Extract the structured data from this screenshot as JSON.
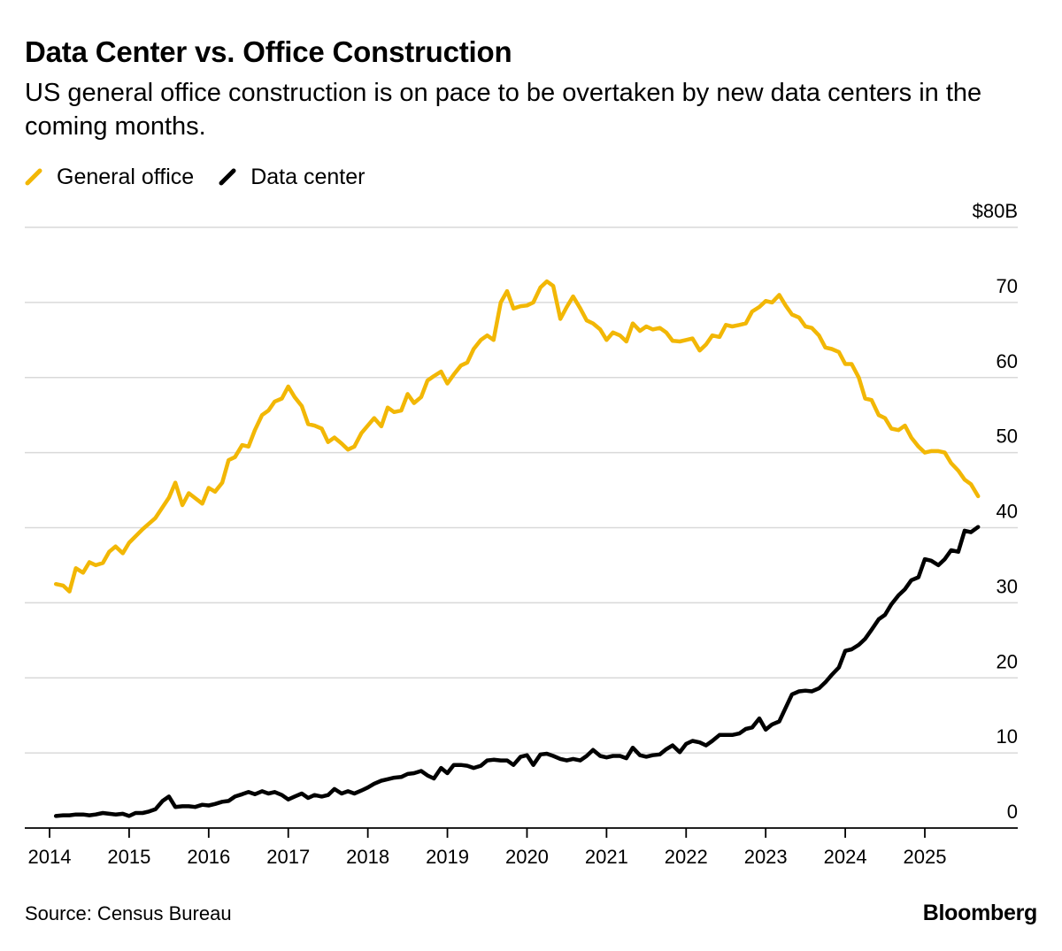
{
  "title": "Data Center vs. Office Construction",
  "subtitle": "US general office construction is on pace to be overtaken by new data centers in the coming months.",
  "source": "Source: Census Bureau",
  "brand": "Bloomberg",
  "colors": {
    "general_office": "#F2B705",
    "data_center": "#000000",
    "grid": "#d9d9d9",
    "axis": "#000000"
  },
  "legend": [
    {
      "label": "General office",
      "color": "#F2B705"
    },
    {
      "label": "Data center",
      "color": "#000000"
    }
  ],
  "chart_data": {
    "type": "line",
    "title": "Data Center vs. Office Construction",
    "subtitle": "US general office construction is on pace to be overtaken by new data centers in the coming months.",
    "xlabel": "",
    "ylabel": "",
    "y_axis_side": "right",
    "ylim": [
      0,
      80
    ],
    "yticks": [
      0,
      10,
      20,
      30,
      40,
      50,
      60,
      70,
      80
    ],
    "ytick_labels": [
      "0",
      "10",
      "20",
      "30",
      "40",
      "50",
      "60",
      "70",
      "$80B"
    ],
    "xlim": [
      2014,
      2026.2
    ],
    "xticks": [
      2014,
      2015,
      2016,
      2017,
      2018,
      2019,
      2020,
      2021,
      2022,
      2023,
      2024,
      2025
    ],
    "xtick_labels": [
      "2014",
      "2015",
      "2016",
      "2017",
      "2018",
      "2019",
      "2020",
      "2021",
      "2022",
      "2023",
      "2024",
      "2025"
    ],
    "grid": true,
    "legend_position": "top-left",
    "series": [
      {
        "name": "General office",
        "color": "#F2B705",
        "points": [
          [
            2014.08,
            32.5
          ],
          [
            2014.17,
            32.3
          ],
          [
            2014.25,
            31.5
          ],
          [
            2014.33,
            34.6
          ],
          [
            2014.42,
            34.0
          ],
          [
            2014.5,
            35.4
          ],
          [
            2014.58,
            35.0
          ],
          [
            2014.67,
            35.3
          ],
          [
            2014.75,
            36.8
          ],
          [
            2014.83,
            37.5
          ],
          [
            2014.92,
            36.6
          ],
          [
            2015.0,
            38.0
          ],
          [
            2015.17,
            39.8
          ],
          [
            2015.33,
            41.3
          ],
          [
            2015.5,
            44.0
          ],
          [
            2015.58,
            46.0
          ],
          [
            2015.67,
            43.0
          ],
          [
            2015.75,
            44.6
          ],
          [
            2015.92,
            43.2
          ],
          [
            2016.0,
            45.3
          ],
          [
            2016.08,
            44.8
          ],
          [
            2016.17,
            46.0
          ],
          [
            2016.25,
            49.0
          ],
          [
            2016.33,
            49.4
          ],
          [
            2016.42,
            51.0
          ],
          [
            2016.5,
            50.8
          ],
          [
            2016.58,
            53.0
          ],
          [
            2016.67,
            55.0
          ],
          [
            2016.75,
            55.6
          ],
          [
            2016.83,
            56.8
          ],
          [
            2016.92,
            57.2
          ],
          [
            2017.0,
            58.8
          ],
          [
            2017.08,
            57.4
          ],
          [
            2017.17,
            56.2
          ],
          [
            2017.25,
            53.8
          ],
          [
            2017.33,
            53.6
          ],
          [
            2017.42,
            53.2
          ],
          [
            2017.5,
            51.4
          ],
          [
            2017.58,
            52.0
          ],
          [
            2017.67,
            51.2
          ],
          [
            2017.75,
            50.4
          ],
          [
            2017.83,
            50.8
          ],
          [
            2017.92,
            52.6
          ],
          [
            2018.0,
            53.6
          ],
          [
            2018.08,
            54.6
          ],
          [
            2018.17,
            53.5
          ],
          [
            2018.25,
            56.0
          ],
          [
            2018.33,
            55.4
          ],
          [
            2018.42,
            55.6
          ],
          [
            2018.5,
            57.8
          ],
          [
            2018.58,
            56.6
          ],
          [
            2018.67,
            57.4
          ],
          [
            2018.75,
            59.6
          ],
          [
            2018.83,
            60.2
          ],
          [
            2018.92,
            60.8
          ],
          [
            2019.0,
            59.2
          ],
          [
            2019.08,
            60.4
          ],
          [
            2019.17,
            61.6
          ],
          [
            2019.25,
            62.0
          ],
          [
            2019.33,
            63.8
          ],
          [
            2019.42,
            65.0
          ],
          [
            2019.5,
            65.6
          ],
          [
            2019.58,
            65.0
          ],
          [
            2019.67,
            70.0
          ],
          [
            2019.75,
            71.5
          ],
          [
            2019.83,
            69.2
          ],
          [
            2019.92,
            69.5
          ],
          [
            2020.0,
            69.6
          ],
          [
            2020.08,
            70.0
          ],
          [
            2020.17,
            72.0
          ],
          [
            2020.25,
            72.8
          ],
          [
            2020.33,
            72.2
          ],
          [
            2020.42,
            67.8
          ],
          [
            2020.5,
            69.4
          ],
          [
            2020.58,
            70.8
          ],
          [
            2020.67,
            69.2
          ],
          [
            2020.75,
            67.6
          ],
          [
            2020.83,
            67.2
          ],
          [
            2020.92,
            66.4
          ],
          [
            2021.0,
            65.0
          ],
          [
            2021.08,
            66.0
          ],
          [
            2021.17,
            65.6
          ],
          [
            2021.25,
            64.8
          ],
          [
            2021.33,
            67.2
          ],
          [
            2021.42,
            66.2
          ],
          [
            2021.5,
            66.8
          ],
          [
            2021.58,
            66.4
          ],
          [
            2021.67,
            66.6
          ],
          [
            2021.75,
            66.0
          ],
          [
            2021.83,
            64.9
          ],
          [
            2021.92,
            64.8
          ],
          [
            2022.0,
            65.0
          ],
          [
            2022.08,
            65.2
          ],
          [
            2022.17,
            63.6
          ],
          [
            2022.25,
            64.4
          ],
          [
            2022.33,
            65.6
          ],
          [
            2022.42,
            65.4
          ],
          [
            2022.5,
            67.0
          ],
          [
            2022.58,
            66.8
          ],
          [
            2022.67,
            67.0
          ],
          [
            2022.75,
            67.2
          ],
          [
            2022.83,
            68.8
          ],
          [
            2022.92,
            69.4
          ],
          [
            2023.0,
            70.2
          ],
          [
            2023.08,
            70.0
          ],
          [
            2023.17,
            71.0
          ],
          [
            2023.25,
            69.6
          ],
          [
            2023.33,
            68.4
          ],
          [
            2023.42,
            68.0
          ],
          [
            2023.5,
            66.8
          ],
          [
            2023.58,
            66.6
          ],
          [
            2023.67,
            65.6
          ],
          [
            2023.75,
            64.0
          ],
          [
            2023.83,
            63.8
          ],
          [
            2023.92,
            63.4
          ],
          [
            2024.0,
            61.8
          ],
          [
            2024.08,
            61.8
          ],
          [
            2024.17,
            60.0
          ],
          [
            2024.25,
            57.2
          ],
          [
            2024.33,
            57.0
          ],
          [
            2024.42,
            55.0
          ],
          [
            2024.5,
            54.6
          ],
          [
            2024.58,
            53.2
          ],
          [
            2024.67,
            53.0
          ],
          [
            2024.75,
            53.6
          ],
          [
            2024.83,
            52.0
          ],
          [
            2024.92,
            50.8
          ],
          [
            2025.0,
            50.0
          ],
          [
            2025.08,
            50.2
          ],
          [
            2025.17,
            50.2
          ],
          [
            2025.25,
            50.0
          ],
          [
            2025.33,
            48.6
          ],
          [
            2025.42,
            47.6
          ],
          [
            2025.5,
            46.4
          ],
          [
            2025.58,
            45.8
          ],
          [
            2025.67,
            44.2
          ]
        ]
      },
      {
        "name": "Data center",
        "color": "#000000",
        "points": [
          [
            2014.08,
            1.6
          ],
          [
            2014.17,
            1.7
          ],
          [
            2014.25,
            1.7
          ],
          [
            2014.33,
            1.8
          ],
          [
            2014.42,
            1.8
          ],
          [
            2014.5,
            1.7
          ],
          [
            2014.58,
            1.8
          ],
          [
            2014.67,
            2.0
          ],
          [
            2014.75,
            1.9
          ],
          [
            2014.83,
            1.8
          ],
          [
            2014.92,
            1.9
          ],
          [
            2015.0,
            1.6
          ],
          [
            2015.08,
            2.0
          ],
          [
            2015.17,
            2.0
          ],
          [
            2015.25,
            2.2
          ],
          [
            2015.33,
            2.5
          ],
          [
            2015.42,
            3.6
          ],
          [
            2015.5,
            4.2
          ],
          [
            2015.58,
            2.8
          ],
          [
            2015.67,
            2.9
          ],
          [
            2015.75,
            2.9
          ],
          [
            2015.83,
            2.8
          ],
          [
            2015.92,
            3.1
          ],
          [
            2016.0,
            3.0
          ],
          [
            2016.08,
            3.2
          ],
          [
            2016.17,
            3.5
          ],
          [
            2016.25,
            3.6
          ],
          [
            2016.33,
            4.2
          ],
          [
            2016.42,
            4.5
          ],
          [
            2016.5,
            4.8
          ],
          [
            2016.58,
            4.5
          ],
          [
            2016.67,
            4.9
          ],
          [
            2016.75,
            4.6
          ],
          [
            2016.83,
            4.8
          ],
          [
            2016.92,
            4.4
          ],
          [
            2017.0,
            3.8
          ],
          [
            2017.08,
            4.2
          ],
          [
            2017.17,
            4.6
          ],
          [
            2017.25,
            4.0
          ],
          [
            2017.33,
            4.4
          ],
          [
            2017.42,
            4.2
          ],
          [
            2017.5,
            4.4
          ],
          [
            2017.58,
            5.2
          ],
          [
            2017.67,
            4.6
          ],
          [
            2017.75,
            4.9
          ],
          [
            2017.83,
            4.6
          ],
          [
            2017.92,
            5.0
          ],
          [
            2018.0,
            5.4
          ],
          [
            2018.08,
            5.9
          ],
          [
            2018.17,
            6.3
          ],
          [
            2018.25,
            6.5
          ],
          [
            2018.33,
            6.7
          ],
          [
            2018.42,
            6.8
          ],
          [
            2018.5,
            7.2
          ],
          [
            2018.58,
            7.3
          ],
          [
            2018.67,
            7.6
          ],
          [
            2018.75,
            7.0
          ],
          [
            2018.83,
            6.6
          ],
          [
            2018.92,
            8.0
          ],
          [
            2019.0,
            7.3
          ],
          [
            2019.08,
            8.4
          ],
          [
            2019.17,
            8.4
          ],
          [
            2019.25,
            8.3
          ],
          [
            2019.33,
            8.0
          ],
          [
            2019.42,
            8.3
          ],
          [
            2019.5,
            9.0
          ],
          [
            2019.58,
            9.1
          ],
          [
            2019.67,
            9.0
          ],
          [
            2019.75,
            9.0
          ],
          [
            2019.83,
            8.4
          ],
          [
            2019.92,
            9.5
          ],
          [
            2020.0,
            9.7
          ],
          [
            2020.08,
            8.4
          ],
          [
            2020.17,
            9.8
          ],
          [
            2020.25,
            9.9
          ],
          [
            2020.33,
            9.6
          ],
          [
            2020.42,
            9.2
          ],
          [
            2020.5,
            9.0
          ],
          [
            2020.58,
            9.2
          ],
          [
            2020.67,
            9.0
          ],
          [
            2020.75,
            9.6
          ],
          [
            2020.83,
            10.4
          ],
          [
            2020.92,
            9.6
          ],
          [
            2021.0,
            9.4
          ],
          [
            2021.08,
            9.6
          ],
          [
            2021.17,
            9.6
          ],
          [
            2021.25,
            9.3
          ],
          [
            2021.33,
            10.7
          ],
          [
            2021.42,
            9.7
          ],
          [
            2021.5,
            9.5
          ],
          [
            2021.58,
            9.7
          ],
          [
            2021.67,
            9.8
          ],
          [
            2021.75,
            10.5
          ],
          [
            2021.83,
            11.0
          ],
          [
            2021.92,
            10.1
          ],
          [
            2022.0,
            11.2
          ],
          [
            2022.08,
            11.6
          ],
          [
            2022.17,
            11.4
          ],
          [
            2022.25,
            11.0
          ],
          [
            2022.33,
            11.6
          ],
          [
            2022.42,
            12.4
          ],
          [
            2022.5,
            12.4
          ],
          [
            2022.58,
            12.4
          ],
          [
            2022.67,
            12.6
          ],
          [
            2022.75,
            13.2
          ],
          [
            2022.83,
            13.4
          ],
          [
            2022.92,
            14.6
          ],
          [
            2023.0,
            13.1
          ],
          [
            2023.08,
            13.8
          ],
          [
            2023.17,
            14.2
          ],
          [
            2023.25,
            16.0
          ],
          [
            2023.33,
            17.8
          ],
          [
            2023.42,
            18.2
          ],
          [
            2023.5,
            18.3
          ],
          [
            2023.58,
            18.2
          ],
          [
            2023.67,
            18.6
          ],
          [
            2023.75,
            19.4
          ],
          [
            2023.83,
            20.4
          ],
          [
            2023.92,
            21.4
          ],
          [
            2024.0,
            23.6
          ],
          [
            2024.08,
            23.8
          ],
          [
            2024.17,
            24.4
          ],
          [
            2024.25,
            25.2
          ],
          [
            2024.33,
            26.4
          ],
          [
            2024.42,
            27.8
          ],
          [
            2024.5,
            28.4
          ],
          [
            2024.58,
            29.8
          ],
          [
            2024.67,
            31.0
          ],
          [
            2024.75,
            31.8
          ],
          [
            2024.83,
            33.0
          ],
          [
            2024.92,
            33.4
          ],
          [
            2025.0,
            35.8
          ],
          [
            2025.08,
            35.6
          ],
          [
            2025.17,
            35.0
          ],
          [
            2025.25,
            35.8
          ],
          [
            2025.33,
            37.0
          ],
          [
            2025.42,
            36.8
          ],
          [
            2025.5,
            39.6
          ],
          [
            2025.58,
            39.4
          ],
          [
            2025.67,
            40.1
          ]
        ]
      }
    ]
  }
}
